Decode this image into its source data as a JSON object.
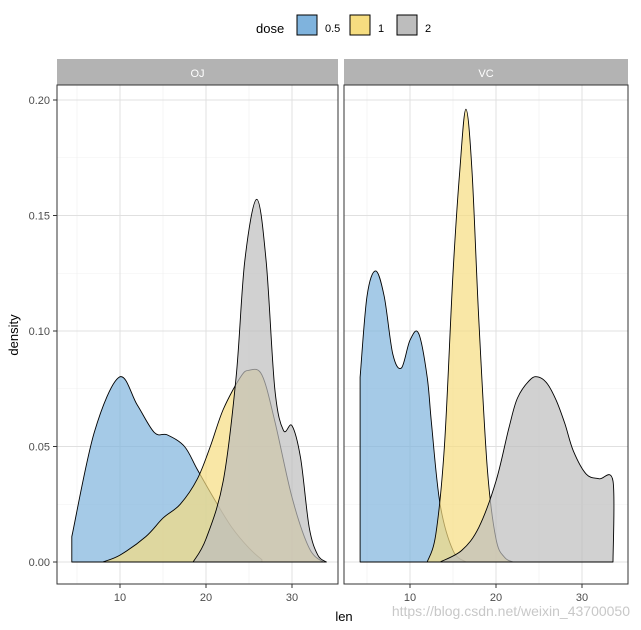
{
  "chart_data": {
    "type": "area",
    "xlabel": "len",
    "ylabel": "density",
    "x_ticks": [
      10,
      20,
      30
    ],
    "y_ticks": [
      0.0,
      0.05,
      0.1,
      0.15,
      0.2
    ],
    "y_tick_labels": [
      "0.00",
      "0.05",
      "0.10",
      "0.15",
      "0.20"
    ],
    "xlim": [
      3.6,
      34.9
    ],
    "ylim": [
      -0.0103,
      0.2054
    ],
    "grid": true,
    "legend": {
      "title": "dose",
      "placement": "top",
      "entries": [
        {
          "label": "0.5",
          "color": "#7fb3dd"
        },
        {
          "label": "1",
          "color": "#f6dd80"
        },
        {
          "label": "2",
          "color": "#bdbdbd"
        }
      ]
    },
    "panels": [
      {
        "name": "OJ",
        "series": [
          {
            "name": "0.5",
            "x": [
              4.4,
              7,
              9.9,
              12,
              14,
              15.5,
              17.5,
              19,
              21,
              23,
              25,
              26.5
            ],
            "y": [
              0.011,
              0.056,
              0.08,
              0.068,
              0.056,
              0.055,
              0.05,
              0.04,
              0.027,
              0.015,
              0.006,
              0.001
            ]
          },
          {
            "name": "1",
            "x": [
              8,
              10,
              13,
              15,
              17,
              19,
              20.5,
              22,
              24,
              25,
              26.5,
              28,
              30,
              32,
              33.6
            ],
            "y": [
              0.0,
              0.003,
              0.011,
              0.019,
              0.025,
              0.036,
              0.05,
              0.066,
              0.08,
              0.083,
              0.081,
              0.061,
              0.028,
              0.006,
              0.0
            ]
          },
          {
            "name": "2",
            "x": [
              18.5,
              20,
              22,
              23.5,
              24.5,
              25.9,
              27,
              28,
              29,
              30,
              31,
              32,
              33,
              34
            ],
            "y": [
              0.0,
              0.01,
              0.035,
              0.08,
              0.13,
              0.157,
              0.13,
              0.075,
              0.057,
              0.059,
              0.045,
              0.015,
              0.003,
              0.0
            ]
          }
        ]
      },
      {
        "name": "VC",
        "series": [
          {
            "name": "0.5",
            "x": [
              4.2,
              5,
              6,
              7,
              8,
              9,
              10,
              11,
              12,
              12.5,
              13.5,
              15,
              16.5
            ],
            "y": [
              0.08,
              0.115,
              0.126,
              0.115,
              0.09,
              0.084,
              0.096,
              0.099,
              0.08,
              0.06,
              0.025,
              0.005,
              0.0
            ]
          },
          {
            "name": "1",
            "x": [
              12,
              13,
              14,
              15,
              15.8,
              16.5,
              17.2,
              18,
              19,
              20,
              21,
              22
            ],
            "y": [
              0.0,
              0.012,
              0.05,
              0.125,
              0.17,
              0.196,
              0.17,
              0.105,
              0.04,
              0.01,
              0.002,
              0.0
            ]
          },
          {
            "name": "2",
            "x": [
              13.5,
              16,
              18,
              20,
              21.5,
              22.5,
              24,
              25,
              26,
              27,
              28,
              29,
              30.5,
              32,
              33.6,
              33.6
            ],
            "y": [
              0.0,
              0.005,
              0.015,
              0.035,
              0.058,
              0.071,
              0.079,
              0.08,
              0.077,
              0.07,
              0.06,
              0.048,
              0.038,
              0.036,
              0.035,
              0.0
            ]
          }
        ]
      }
    ]
  },
  "watermark": "https://blog.csdn.net/weixin_43700050"
}
